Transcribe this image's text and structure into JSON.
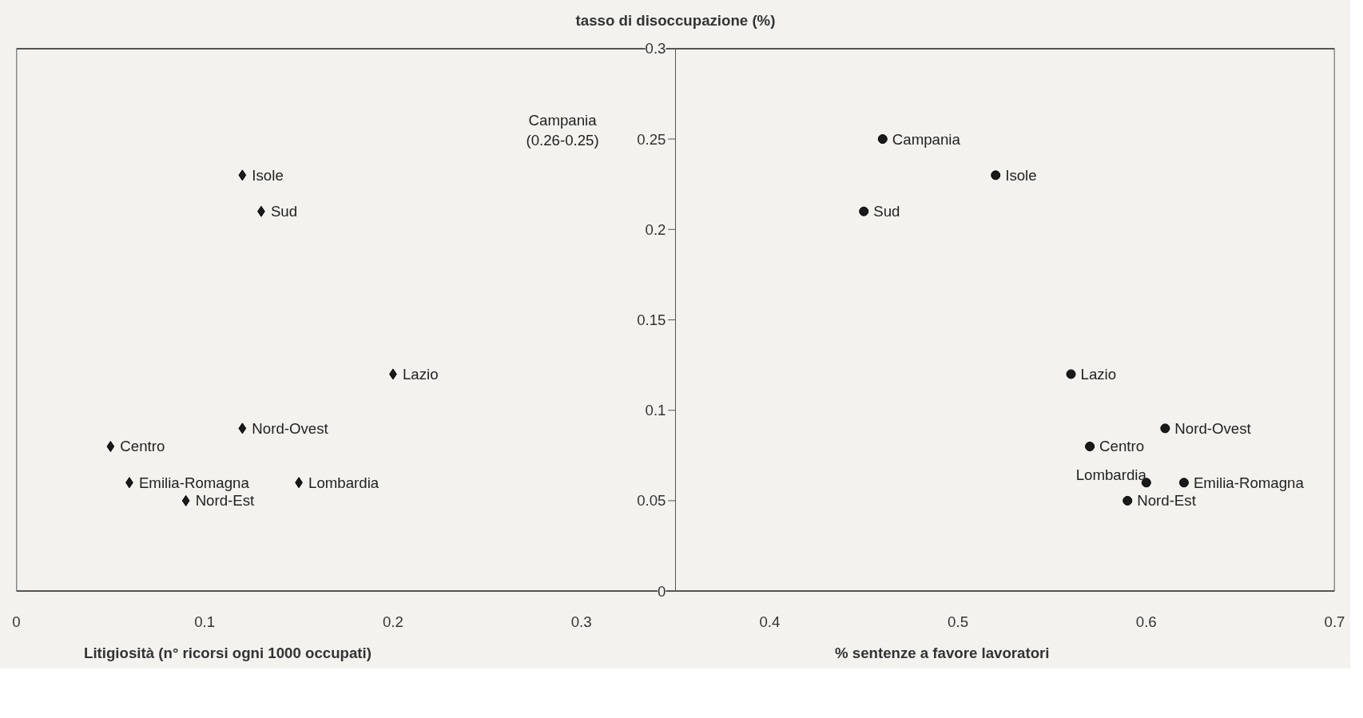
{
  "chart_data": {
    "type": "scatter",
    "ylabel": "tasso di disoccupazione (%)",
    "xlabel": "Litigiosità (n° ricorsi ogni 1000 occupati)",
    "xlim": [
      0,
      0.7
    ],
    "xticks": [
      0,
      0.1,
      0.2,
      0.3,
      0.4,
      0.5,
      0.6,
      0.7
    ],
    "ylim": [
      0,
      0.3
    ],
    "yticks": [
      0,
      0.05,
      0.1,
      0.15,
      0.2,
      0.25,
      0.3
    ],
    "grid": false,
    "series": [
      {
        "marker": "diamond",
        "color": "#1a1a1a",
        "x": [
          0.12,
          0.13,
          0.2,
          0.12,
          0.05,
          0.06,
          0.15,
          0.09
        ],
        "values": [
          0.23,
          0.21,
          0.12,
          0.09,
          0.08,
          0.06,
          0.06,
          0.05
        ]
      },
      {
        "marker": "circle",
        "color": "#1a1a1a",
        "x": [
          0.46,
          0.52,
          0.45,
          0.56,
          0.57,
          0.61,
          0.6,
          0.62,
          0.59
        ],
        "values": [
          0.25,
          0.23,
          0.21,
          0.12,
          0.08,
          0.09,
          0.06,
          0.06,
          0.05
        ]
      }
    ],
    "annotations": [
      {
        "text": "Isole",
        "x": 0.12,
        "y": 0.23
      },
      {
        "text": "Sud",
        "x": 0.13,
        "y": 0.21
      },
      {
        "text": "Lazio",
        "x": 0.2,
        "y": 0.12
      },
      {
        "text": "Nord-Ovest",
        "x": 0.12,
        "y": 0.09
      },
      {
        "text": "Centro",
        "x": 0.05,
        "y": 0.08
      },
      {
        "text": "Emilia-Romagna",
        "x": 0.06,
        "y": 0.06
      },
      {
        "text": "Lombardia",
        "x": 0.15,
        "y": 0.06
      },
      {
        "text": "Nord-Est",
        "x": 0.09,
        "y": 0.05
      },
      "Campania\n(0.26-0.25)",
      {
        "text": "Campania",
        "x": 0.46,
        "y": 0.25
      },
      {
        "text": "Isole",
        "x": 0.52,
        "y": 0.23
      },
      {
        "text": "Sud",
        "x": 0.45,
        "y": 0.21
      },
      {
        "text": "Lazio",
        "x": 0.56,
        "y": 0.12
      },
      {
        "text": "Centro",
        "x": 0.57,
        "y": 0.08
      },
      {
        "text": "Nord-Ovest",
        "x": 0.61,
        "y": 0.09
      },
      {
        "text": "Lombardia",
        "x": 0.6,
        "y": 0.06
      },
      {
        "text": "Emilia-Romagna",
        "x": 0.62,
        "y": 0.06
      },
      {
        "text": "Nord-Est",
        "x": 0.59,
        "y": 0.05
      },
      "% sentenze a favore lavoratori"
    ]
  }
}
